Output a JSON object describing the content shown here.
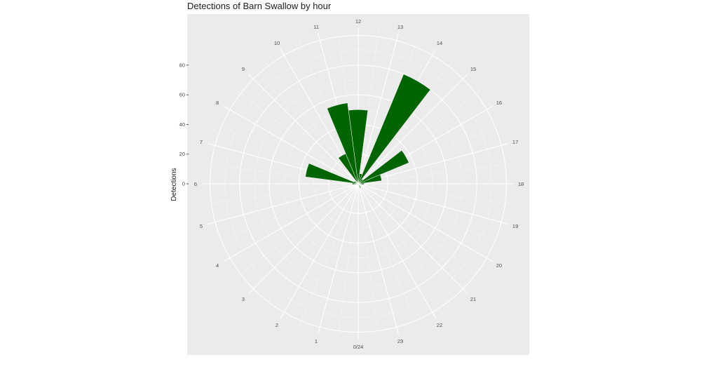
{
  "chart_data": {
    "type": "bar",
    "coord": "polar",
    "title": "Detections of Barn Swallow by hour",
    "xlabel": "",
    "ylabel": "Detections",
    "categories": [
      "0/24",
      "1",
      "2",
      "3",
      "4",
      "5",
      "6",
      "7",
      "8",
      "9",
      "10",
      "11",
      "12",
      "13",
      "14",
      "15",
      "16",
      "17",
      "18",
      "19",
      "20",
      "21",
      "22",
      "23"
    ],
    "values": [
      0,
      0,
      0,
      0,
      0,
      0,
      4,
      36,
      3,
      0,
      22,
      55,
      50,
      7,
      80,
      4,
      37,
      16,
      4,
      0,
      0,
      0,
      3,
      0
    ],
    "yticks": [
      0,
      20,
      40,
      60,
      80
    ],
    "ylim": [
      0,
      105
    ],
    "bar_color": "#006400",
    "panel_color": "#ebebeb",
    "grid": true
  }
}
